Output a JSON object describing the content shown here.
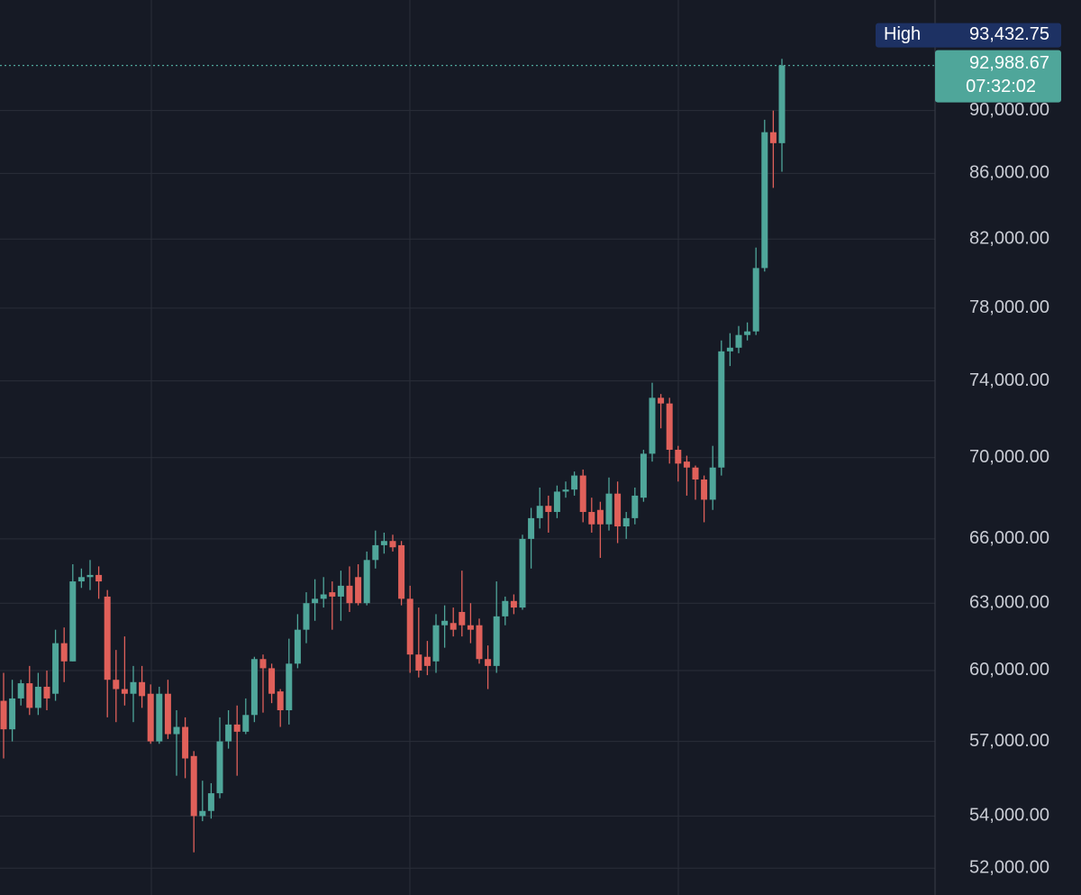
{
  "chart_data": {
    "type": "candlestick",
    "log_scale": true,
    "grid": true,
    "up_color": "#4fa69a",
    "down_color": "#e0605a",
    "ylim": [
      51000,
      97500
    ],
    "yticks": [
      {
        "value": 52000,
        "label": "52,000.00"
      },
      {
        "value": 54000,
        "label": "54,000.00"
      },
      {
        "value": 57000,
        "label": "57,000.00"
      },
      {
        "value": 60000,
        "label": "60,000.00"
      },
      {
        "value": 63000,
        "label": "63,000.00"
      },
      {
        "value": 66000,
        "label": "66,000.00"
      },
      {
        "value": 70000,
        "label": "70,000.00"
      },
      {
        "value": 74000,
        "label": "74,000.00"
      },
      {
        "value": 78000,
        "label": "78,000.00"
      },
      {
        "value": 82000,
        "label": "82,000.00"
      },
      {
        "value": 86000,
        "label": "86,000.00"
      },
      {
        "value": 90000,
        "label": "90,000.00"
      }
    ],
    "open": [
      58700,
      57500,
      58800,
      59450,
      58400,
      59300,
      59000,
      61200,
      60400,
      64000,
      64200,
      64300,
      63300,
      59600,
      59200,
      59000,
      59500,
      59000,
      57000,
      59000,
      57300,
      57600,
      56400,
      54000,
      54200,
      54900,
      57000,
      57700,
      57400,
      58100,
      60500,
      60100,
      59100,
      58300,
      60300,
      61800,
      63000,
      63200,
      63500,
      63300,
      63800,
      64200,
      63000,
      65000,
      65700,
      65900,
      65700,
      63200,
      60700,
      60600,
      60400,
      62000,
      62100,
      62600,
      62000,
      62000,
      60500,
      60200,
      62400,
      63100,
      62800,
      66000,
      67000,
      67600,
      67300,
      68300,
      68400,
      69100,
      67300,
      67400,
      66700,
      68200,
      66600,
      67000,
      68000,
      70200,
      73100,
      72800,
      70400,
      69800,
      69500,
      68900,
      67900,
      69500,
      75600,
      75800,
      76500,
      76700,
      80300,
      88600,
      87900
    ],
    "high": [
      59900,
      59600,
      59600,
      60200,
      59900,
      60000,
      61800,
      61900,
      64800,
      64600,
      65000,
      64700,
      63600,
      60900,
      61500,
      60200,
      60200,
      59400,
      59300,
      59600,
      58300,
      58000,
      56600,
      55400,
      55300,
      58000,
      58300,
      58500,
      58800,
      60600,
      60700,
      60300,
      59200,
      61400,
      62500,
      63500,
      64100,
      64200,
      64000,
      64500,
      64700,
      64800,
      65400,
      66400,
      66300,
      66200,
      65900,
      63800,
      62800,
      61300,
      62500,
      62900,
      62800,
      64500,
      63000,
      62300,
      61100,
      64000,
      63300,
      63400,
      66200,
      67500,
      68500,
      68100,
      68600,
      68800,
      69300,
      69400,
      68000,
      67800,
      69000,
      68800,
      67300,
      68500,
      70400,
      73900,
      73300,
      73100,
      70600,
      70100,
      69600,
      69100,
      70600,
      76200,
      76600,
      77000,
      77200,
      81500,
      89400,
      90000,
      93432.75
    ],
    "low": [
      56300,
      57000,
      58500,
      58100,
      58100,
      58300,
      58700,
      59500,
      60400,
      63700,
      63600,
      63200,
      58000,
      57800,
      58500,
      57800,
      58400,
      56900,
      56900,
      57100,
      55600,
      55500,
      52600,
      53800,
      53900,
      54700,
      56700,
      55600,
      57300,
      57800,
      58200,
      58600,
      57600,
      57700,
      60100,
      61200,
      62200,
      62800,
      61800,
      62200,
      62600,
      62900,
      62900,
      64600,
      65300,
      65400,
      62900,
      59900,
      59700,
      59800,
      59900,
      61000,
      61500,
      61500,
      61200,
      60300,
      59200,
      59900,
      62000,
      62500,
      62700,
      64600,
      66500,
      66300,
      67000,
      68000,
      68100,
      66800,
      66300,
      65100,
      66400,
      65800,
      66000,
      66700,
      67800,
      69800,
      71500,
      69700,
      68800,
      68100,
      67900,
      66800,
      67400,
      69100,
      74800,
      75500,
      76200,
      76500,
      80100,
      85100,
      86100
    ],
    "close": [
      57500,
      58800,
      59450,
      58400,
      59300,
      58800,
      61200,
      60400,
      64000,
      64200,
      64300,
      64000,
      59600,
      59200,
      59000,
      59500,
      58900,
      57000,
      59000,
      57300,
      57600,
      56300,
      54000,
      54200,
      54900,
      57000,
      57700,
      57400,
      58100,
      60500,
      60100,
      59000,
      58300,
      60300,
      61800,
      63000,
      63200,
      63400,
      63300,
      63800,
      63000,
      63000,
      65000,
      65700,
      65900,
      65600,
      63200,
      60700,
      60000,
      60200,
      62000,
      62200,
      61800,
      62000,
      61800,
      60500,
      60200,
      62400,
      63100,
      62800,
      66000,
      67000,
      67600,
      67300,
      68300,
      68400,
      69100,
      67300,
      66700,
      66700,
      68200,
      66600,
      67000,
      68100,
      70200,
      73100,
      72800,
      70400,
      69700,
      69500,
      68900,
      67900,
      69500,
      75600,
      75800,
      76500,
      76700,
      80300,
      88600,
      87900,
      92988.67
    ],
    "high_marker": {
      "text": "High",
      "value": 93432.75,
      "label": "93,432.75"
    },
    "last_price": {
      "value": 92988.67,
      "label": "92,988.67",
      "time": "07:32:02"
    }
  }
}
